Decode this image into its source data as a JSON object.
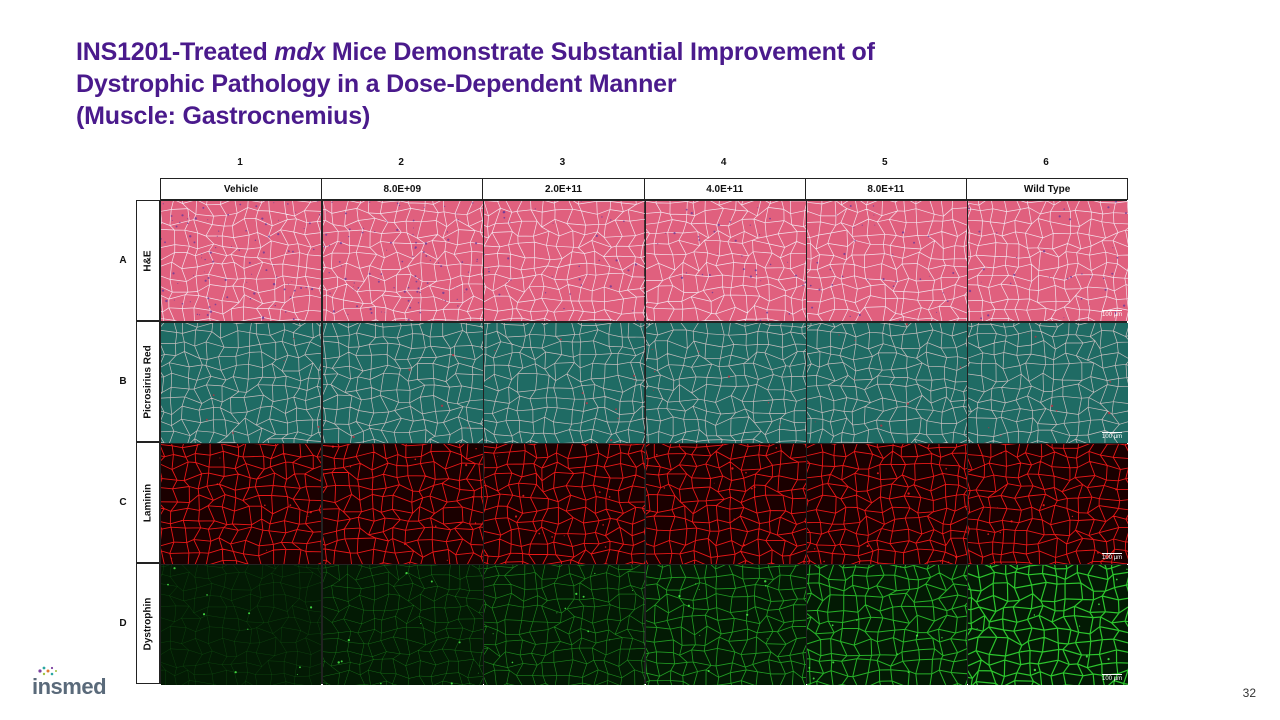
{
  "slide": {
    "title_part1": "INS1201-Treated ",
    "title_italic": "mdx",
    "title_part2": " Mice Demonstrate Substantial Improvement of",
    "title_line2": "Dystrophic Pathology in a Dose-Dependent Manner",
    "title_line3": "(Muscle: Gastrocnemius)",
    "page_number": "32"
  },
  "logo": {
    "text": "insmed",
    "dot_colors": [
      "#7b3fa0",
      "#2aa6a0",
      "#a0c040",
      "#e07a30"
    ]
  },
  "columns": [
    {
      "num": "1",
      "label": "Vehicle"
    },
    {
      "num": "2",
      "label": "8.0E+09"
    },
    {
      "num": "3",
      "label": "2.0E+11"
    },
    {
      "num": "4",
      "label": "4.0E+11"
    },
    {
      "num": "5",
      "label": "8.0E+11"
    },
    {
      "num": "6",
      "label": "Wild Type"
    }
  ],
  "rows": [
    {
      "letter": "A",
      "stain": "H&E",
      "bg": "#e0607e",
      "line": "#f6f2fa",
      "dot": "#6a3a9a",
      "scale": "100 µm"
    },
    {
      "letter": "B",
      "stain": "Picrosirius Red",
      "bg": "#1f6b64",
      "line": "#d8c8c8",
      "dot": "#c03040",
      "scale": "100 µm"
    },
    {
      "letter": "C",
      "stain": "Laminin",
      "bg": "#1a0000",
      "line": "#ff1a1a",
      "dot": "#ff2020",
      "scale": "100 µm"
    },
    {
      "letter": "D",
      "stain": "Dystrophin",
      "bg": "#031a04",
      "line": "#2fd030",
      "dot": "#50ff50",
      "scale": "100 µm"
    }
  ]
}
